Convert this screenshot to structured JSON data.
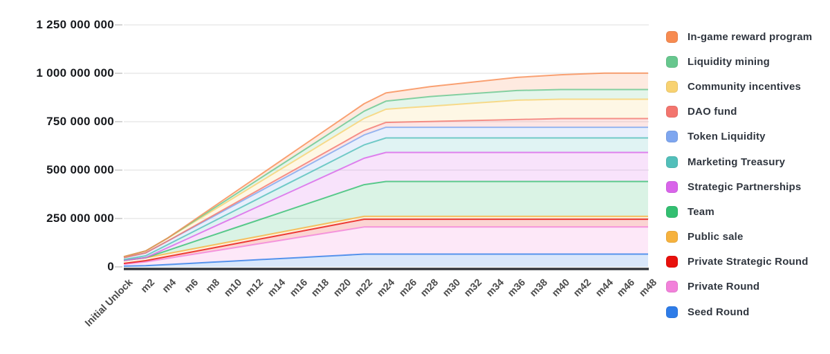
{
  "chart_data": {
    "type": "area",
    "stacked": true,
    "title": "",
    "xlabel": "",
    "ylabel": "",
    "grid": true,
    "legend_position": "right",
    "ylim": [
      0,
      1250000000
    ],
    "y_ticks": [
      {
        "label": "0",
        "value": 0
      },
      {
        "label": "250 000 000",
        "value": 250000000
      },
      {
        "label": "500 000 000",
        "value": 500000000
      },
      {
        "label": "750 000 000",
        "value": 750000000
      },
      {
        "label": "1 000 000 000",
        "value": 1000000000
      },
      {
        "label": "1 250 000 000",
        "value": 1250000000
      }
    ],
    "x_labels": [
      "Initial Unlock",
      "m2",
      "m4",
      "m6",
      "m8",
      "m10",
      "m12",
      "m14",
      "m16",
      "m18",
      "m20",
      "m22",
      "m24",
      "m26",
      "m28",
      "m30",
      "m32",
      "m34",
      "m36",
      "m38",
      "m40",
      "m42",
      "m44",
      "m46",
      "m48"
    ],
    "series": [
      {
        "name": "Seed Round",
        "color": "#2e7ce8",
        "values": [
          4000000,
          6000000,
          12000000,
          18000000,
          24000000,
          30000000,
          36000000,
          42000000,
          48000000,
          54000000,
          60000000,
          66000000,
          66000000,
          66000000,
          66000000,
          66000000,
          66000000,
          66000000,
          66000000,
          66000000,
          66000000,
          66000000,
          66000000,
          66000000,
          66000000
        ]
      },
      {
        "name": "Private Round",
        "color": "#f281da",
        "values": [
          10000000,
          20000000,
          32000000,
          44000000,
          56000000,
          68000000,
          80000000,
          92000000,
          104000000,
          116000000,
          128000000,
          140000000,
          140000000,
          140000000,
          140000000,
          140000000,
          140000000,
          140000000,
          140000000,
          140000000,
          140000000,
          140000000,
          140000000,
          140000000,
          140000000
        ]
      },
      {
        "name": "Private Strategic Round",
        "color": "#e8100c",
        "values": [
          4000000,
          6000000,
          9400000,
          12800000,
          16200000,
          19600000,
          23000000,
          26400000,
          29800000,
          33200000,
          36600000,
          40000000,
          40000000,
          40000000,
          40000000,
          40000000,
          40000000,
          40000000,
          40000000,
          40000000,
          40000000,
          40000000,
          40000000,
          40000000,
          40000000
        ]
      },
      {
        "name": "Public sale",
        "color": "#f6b23e",
        "values": [
          15000000,
          15000000,
          15000000,
          15000000,
          15000000,
          15000000,
          15000000,
          15000000,
          15000000,
          15000000,
          15000000,
          15000000,
          15000000,
          15000000,
          15000000,
          15000000,
          15000000,
          15000000,
          15000000,
          15000000,
          15000000,
          15000000,
          15000000,
          15000000,
          15000000
        ]
      },
      {
        "name": "Team",
        "color": "#33bf71",
        "values": [
          0,
          0,
          16400000,
          32700000,
          49100000,
          65500000,
          81800000,
          98200000,
          114500000,
          130900000,
          147300000,
          163600000,
          180000000,
          180000000,
          180000000,
          180000000,
          180000000,
          180000000,
          180000000,
          180000000,
          180000000,
          180000000,
          180000000,
          180000000,
          180000000
        ]
      },
      {
        "name": "Strategic Partnerships",
        "color": "#d964ea",
        "values": [
          0,
          0,
          13600000,
          27300000,
          40900000,
          54500000,
          68200000,
          81800000,
          95500000,
          109100000,
          122700000,
          136400000,
          150000000,
          150000000,
          150000000,
          150000000,
          150000000,
          150000000,
          150000000,
          150000000,
          150000000,
          150000000,
          150000000,
          150000000,
          150000000
        ]
      },
      {
        "name": "Marketing Treasury",
        "color": "#52bfba",
        "values": [
          5000000,
          10000000,
          15900000,
          21800000,
          27700000,
          33600000,
          39500000,
          45500000,
          51400000,
          57300000,
          63200000,
          69100000,
          75000000,
          75000000,
          75000000,
          75000000,
          75000000,
          75000000,
          75000000,
          75000000,
          75000000,
          75000000,
          75000000,
          75000000,
          75000000
        ]
      },
      {
        "name": "Token Liquidity",
        "color": "#7ea6ef",
        "values": [
          10000000,
          15000000,
          18600000,
          22300000,
          25900000,
          29500000,
          33200000,
          36800000,
          40500000,
          44100000,
          47700000,
          51400000,
          55000000,
          55000000,
          55000000,
          55000000,
          55000000,
          55000000,
          55000000,
          55000000,
          55000000,
          55000000,
          55000000,
          55000000,
          55000000
        ]
      },
      {
        "name": "DAO fund",
        "color": "#f3756e",
        "values": [
          0,
          0,
          0,
          2500000,
          5000000,
          7500000,
          10000000,
          12500000,
          15000000,
          17500000,
          20000000,
          22500000,
          25000000,
          27500000,
          30000000,
          32500000,
          35000000,
          37500000,
          40000000,
          42500000,
          45000000,
          45000000,
          45000000,
          45000000,
          45000000
        ]
      },
      {
        "name": "Community incentives",
        "color": "#f8d271",
        "values": [
          5000000,
          10000000,
          15300000,
          20600000,
          25900000,
          31200000,
          36500000,
          41800000,
          47100000,
          52400000,
          57600000,
          62900000,
          68200000,
          73500000,
          78800000,
          84100000,
          89400000,
          94700000,
          100000000,
          100000000,
          100000000,
          100000000,
          100000000,
          100000000,
          100000000
        ]
      },
      {
        "name": "Liquidity mining",
        "color": "#67c78e",
        "values": [
          0,
          0,
          0,
          4200000,
          8300000,
          12500000,
          16700000,
          20800000,
          25000000,
          29200000,
          33300000,
          37500000,
          41700000,
          45800000,
          50000000,
          50000000,
          50000000,
          50000000,
          50000000,
          50000000,
          50000000,
          50000000,
          50000000,
          50000000,
          50000000
        ]
      },
      {
        "name": "In-game reward program",
        "color": "#f78b51",
        "values": [
          0,
          0,
          0,
          4300000,
          8500000,
          12800000,
          17000000,
          21300000,
          25500000,
          29800000,
          34000000,
          38300000,
          42500000,
          46800000,
          51000000,
          55300000,
          59500000,
          63800000,
          68000000,
          72300000,
          76500000,
          80800000,
          85000000,
          85000000,
          85000000
        ]
      }
    ],
    "colors": {
      "gridline": "#e9e9e9",
      "tick": "#c9c9c9",
      "axis_baseline": "#33363d",
      "y_label_text": "#17191d",
      "x_label_text": "#4b4b4b",
      "legend_text": "#30363f"
    }
  }
}
